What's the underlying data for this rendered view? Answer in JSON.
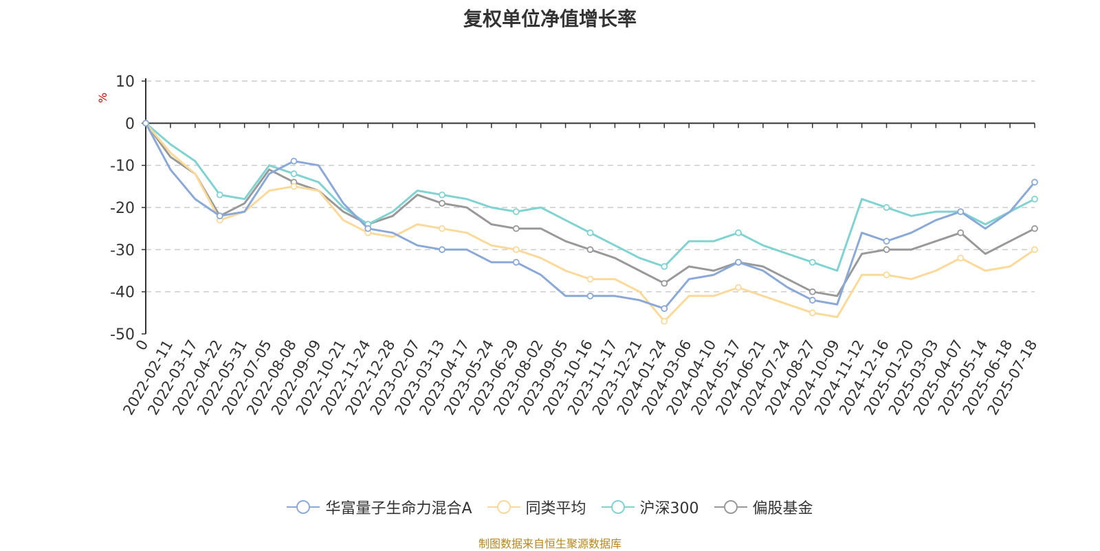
{
  "title": "复权单位净值增长率",
  "source_note": "制图数据来自恒生聚源数据库",
  "chart_data": {
    "type": "line",
    "title": "复权单位净值增长率",
    "ylabel": "%",
    "ylim": [
      -50,
      10
    ],
    "yticks": [
      10,
      0,
      -10,
      -20,
      -30,
      -40,
      -50
    ],
    "grid": true,
    "legend_position": "bottom",
    "x": [
      "0",
      "2022-02-11",
      "2022-03-17",
      "2022-04-22",
      "2022-05-31",
      "2022-07-05",
      "2022-08-08",
      "2022-09-09",
      "2022-10-21",
      "2022-11-24",
      "2022-12-28",
      "2023-02-07",
      "2023-03-13",
      "2023-04-17",
      "2023-05-24",
      "2023-06-29",
      "2023-08-02",
      "2023-09-05",
      "2023-10-16",
      "2023-11-17",
      "2023-12-21",
      "2024-01-24",
      "2024-03-06",
      "2024-04-10",
      "2024-05-17",
      "2024-06-21",
      "2024-07-24",
      "2024-08-27",
      "2024-10-09",
      "2024-11-12",
      "2024-12-16",
      "2025-01-20",
      "2025-03-03",
      "2025-04-07",
      "2025-05-14",
      "2025-06-18",
      "2025-07-18"
    ],
    "series": [
      {
        "name": "华富量子生命力混合A",
        "color": "#8aa9d9",
        "values": [
          0,
          -11,
          -18,
          -22,
          -21,
          -12,
          -9,
          -10,
          -19,
          -25,
          -26,
          -29,
          -30,
          -30,
          -33,
          -33,
          -36,
          -41,
          -41,
          -41,
          -42,
          -44,
          -37,
          -36,
          -33,
          -35,
          -39,
          -42,
          -43,
          -26,
          -28,
          -26,
          -23,
          -21,
          -25,
          -21,
          -14
        ]
      },
      {
        "name": "同类平均",
        "color": "#fad999",
        "values": [
          0,
          -7,
          -12,
          -23,
          -21,
          -16,
          -15,
          -16,
          -23,
          -26,
          -27,
          -24,
          -25,
          -26,
          -29,
          -30,
          -32,
          -35,
          -37,
          -37,
          -40,
          -47,
          -41,
          -41,
          -39,
          -41,
          -43,
          -45,
          -46,
          -36,
          -36,
          -37,
          -35,
          -32,
          -35,
          -34,
          -30
        ]
      },
      {
        "name": "沪深300",
        "color": "#7fd3d0",
        "values": [
          0,
          -5,
          -9,
          -17,
          -18,
          -10,
          -12,
          -14,
          -20,
          -24,
          -21,
          -16,
          -17,
          -18,
          -20,
          -21,
          -20,
          -23,
          -26,
          -29,
          -32,
          -34,
          -28,
          -28,
          -26,
          -29,
          -31,
          -33,
          -35,
          -18,
          -20,
          -22,
          -21,
          -21,
          -24,
          -21,
          -18
        ]
      },
      {
        "name": "偏股基金",
        "color": "#999999",
        "values": [
          0,
          -8,
          -12,
          -22,
          -19,
          -11,
          -14,
          -16,
          -21,
          -24,
          -22,
          -17,
          -19,
          -20,
          -24,
          -25,
          -25,
          -28,
          -30,
          -32,
          -35,
          -38,
          -34,
          -35,
          -33,
          -34,
          -37,
          -40,
          -41,
          -31,
          -30,
          -30,
          -28,
          -26,
          -31,
          -28,
          -25
        ]
      }
    ]
  }
}
